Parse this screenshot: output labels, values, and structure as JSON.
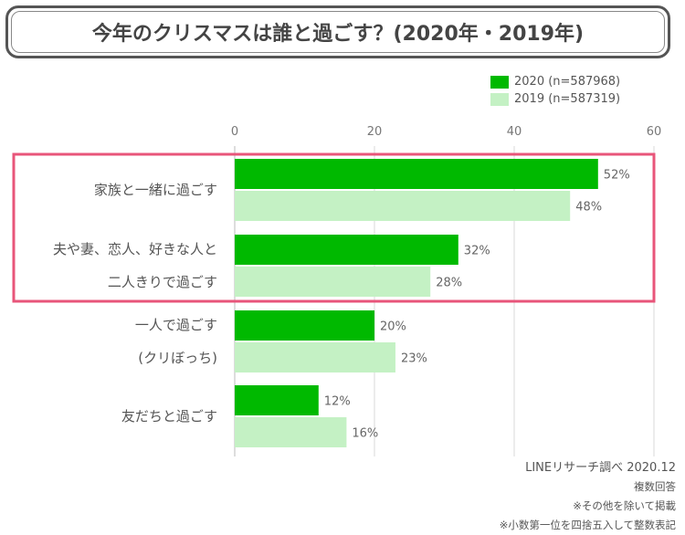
{
  "title": "今年のクリスマスは誰と過ごす？(2020年・2019年)",
  "legend": [
    {
      "label": "2020 (n=587968)",
      "color": "#00b900"
    },
    {
      "label": "2019 (n=587319)",
      "color": "#c4f1c4"
    }
  ],
  "notes": {
    "source": "LINEリサーチ調べ 2020.12",
    "line1": "複数回答",
    "line2": "※その他を除いて掲載",
    "line3": "※小数第一位を四捨五入して整数表記"
  },
  "highlight_color": "#e8557a",
  "chart_data": {
    "type": "bar",
    "orientation": "horizontal",
    "title": "今年のクリスマスは誰と過ごす？(2020年・2019年)",
    "xlim": [
      0,
      60
    ],
    "ticks": [
      0,
      20,
      40,
      60
    ],
    "categories": [
      [
        "家族と一緒に過ごす"
      ],
      [
        "夫や妻、恋人、好きな人と",
        "二人きりで過ごす"
      ],
      [
        "一人で過ごす",
        "(クリぼっち)"
      ],
      [
        "友だちと過ごす"
      ]
    ],
    "series": [
      {
        "name": "2020 (n=587968)",
        "color": "#00b900",
        "values": [
          52,
          32,
          20,
          12
        ]
      },
      {
        "name": "2019 (n=587319)",
        "color": "#c4f1c4",
        "values": [
          48,
          28,
          23,
          16
        ]
      }
    ],
    "value_suffix": "%",
    "highlighted_categories": [
      0,
      1
    ],
    "grid": true,
    "legend_position": "top-right"
  }
}
